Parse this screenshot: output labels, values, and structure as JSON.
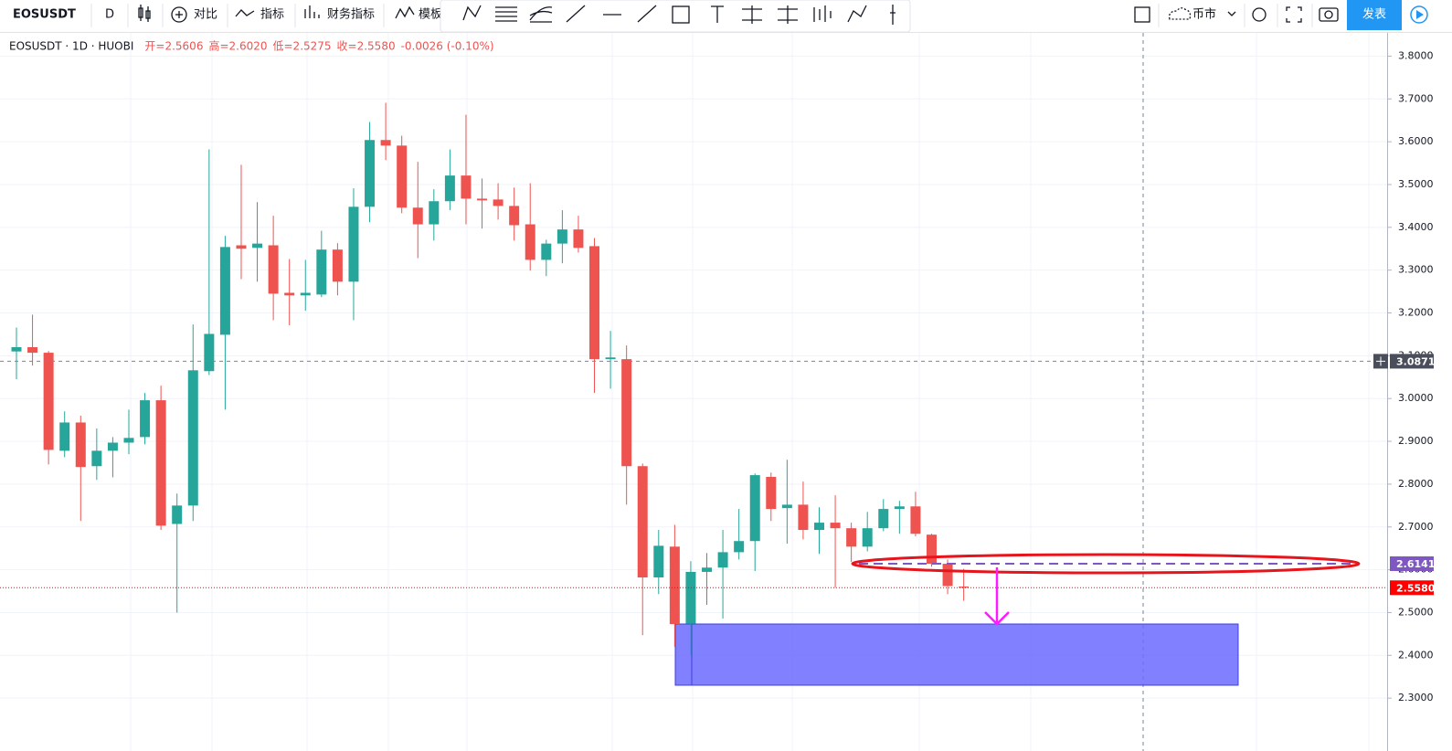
{
  "toolbar": {
    "symbol": "EOSUSDT",
    "interval": "D",
    "compare": "对比",
    "indicators": "指标",
    "financials": "财务指标",
    "templates": "模板",
    "market": "币市",
    "publish": "发表"
  },
  "chart_data": {
    "type": "candlestick",
    "legend_title": "EOSUSDT · 1D · HUOBI",
    "legend_values": [
      "开=2.5606",
      "高=2.6020",
      "低=2.5275",
      "收=2.5580",
      "-0.0026 (-0.10%)"
    ],
    "up_color": "#26a69a",
    "down_color": "#ef5350",
    "open": [
      3.11,
      3.12,
      3.107,
      2.878,
      2.944,
      2.842,
      2.878,
      2.897,
      2.91,
      2.996,
      2.707,
      2.75,
      3.064,
      3.149,
      3.358,
      3.352,
      3.358,
      3.247,
      3.241,
      3.243,
      3.348,
      3.273,
      3.448,
      3.604,
      3.591,
      3.446,
      3.407,
      3.461,
      3.521,
      3.467,
      3.465,
      3.45,
      3.407,
      3.324,
      3.362,
      3.395,
      3.356,
      3.092,
      3.092,
      2.842,
      2.582,
      2.654,
      2.474,
      2.595,
      2.605,
      2.641,
      2.667,
      2.817,
      2.744,
      2.752,
      2.693,
      2.71,
      2.697,
      2.654,
      2.697,
      2.742,
      2.748,
      2.682,
      2.614,
      2.5606
    ],
    "high": [
      3.166,
      3.196,
      3.111,
      2.97,
      2.96,
      2.93,
      2.91,
      2.974,
      3.013,
      3.03,
      2.778,
      3.173,
      3.582,
      3.38,
      3.546,
      3.459,
      3.427,
      3.326,
      3.324,
      3.392,
      3.363,
      3.491,
      3.646,
      3.691,
      3.614,
      3.553,
      3.489,
      3.582,
      3.663,
      3.514,
      3.503,
      3.493,
      3.503,
      3.371,
      3.44,
      3.427,
      3.375,
      3.158,
      3.124,
      2.848,
      2.693,
      2.705,
      2.62,
      2.639,
      2.693,
      2.742,
      2.825,
      2.827,
      2.857,
      2.806,
      2.746,
      2.774,
      2.71,
      2.735,
      2.765,
      2.761,
      2.782,
      2.684,
      2.624,
      2.602
    ],
    "low": [
      3.045,
      3.077,
      2.846,
      2.863,
      2.714,
      2.81,
      2.816,
      2.87,
      2.893,
      2.693,
      2.5,
      2.714,
      3.055,
      2.974,
      3.279,
      3.273,
      3.183,
      3.171,
      3.205,
      3.237,
      3.241,
      3.183,
      3.412,
      3.557,
      3.433,
      3.328,
      3.369,
      3.44,
      3.407,
      3.397,
      3.418,
      3.369,
      3.299,
      3.286,
      3.316,
      3.341,
      3.013,
      3.023,
      2.752,
      2.447,
      2.543,
      2.42,
      2.4,
      2.518,
      2.486,
      2.624,
      2.597,
      2.714,
      2.661,
      2.671,
      2.637,
      2.558,
      2.618,
      2.643,
      2.69,
      2.684,
      2.678,
      2.607,
      2.543,
      2.5275
    ],
    "close": [
      3.12,
      3.107,
      2.88,
      2.944,
      2.84,
      2.878,
      2.897,
      2.908,
      2.996,
      2.703,
      2.75,
      3.066,
      3.151,
      3.354,
      3.35,
      3.362,
      3.245,
      3.241,
      3.247,
      3.348,
      3.273,
      3.448,
      3.604,
      3.591,
      3.446,
      3.407,
      3.461,
      3.521,
      3.467,
      3.463,
      3.45,
      3.405,
      3.324,
      3.362,
      3.395,
      3.352,
      3.092,
      3.096,
      2.842,
      2.582,
      2.656,
      2.473,
      2.595,
      2.605,
      2.641,
      2.667,
      2.821,
      2.742,
      2.752,
      2.693,
      2.71,
      2.697,
      2.654,
      2.697,
      2.742,
      2.748,
      2.684,
      2.614,
      2.562,
      2.558
    ],
    "ylim": [
      2.2,
      3.85
    ],
    "yticks": [
      {
        "value": 2.3,
        "label": "2.3000"
      },
      {
        "value": 2.4,
        "label": "2.4000"
      },
      {
        "value": 2.5,
        "label": "2.5000"
      },
      {
        "value": 2.6,
        "label": "2.6000"
      },
      {
        "value": 2.7,
        "label": "2.7000"
      },
      {
        "value": 2.8,
        "label": "2.8000"
      },
      {
        "value": 2.9,
        "label": "2.9000"
      },
      {
        "value": 3.0,
        "label": "3.0000"
      },
      {
        "value": 3.1,
        "label": "3.1000"
      },
      {
        "value": 3.2,
        "label": "3.2000"
      },
      {
        "value": 3.3,
        "label": "3.3000"
      },
      {
        "value": 3.4,
        "label": "3.4000"
      },
      {
        "value": 3.5,
        "label": "3.5000"
      },
      {
        "value": 3.6,
        "label": "3.6000"
      },
      {
        "value": 3.7,
        "label": "3.7000"
      },
      {
        "value": 3.8,
        "label": "3.8000"
      }
    ],
    "grid": true,
    "price_lines": [
      {
        "value": 3.0871,
        "label": "3.0871",
        "color": "#4a4e5a",
        "style": "crosshair"
      },
      {
        "value": 2.6141,
        "label": "2.6141",
        "color": "#7e57c2",
        "style": "drawing"
      },
      {
        "value": 2.558,
        "label": "2.5580",
        "color": "#ff0000",
        "style": "last"
      }
    ]
  }
}
